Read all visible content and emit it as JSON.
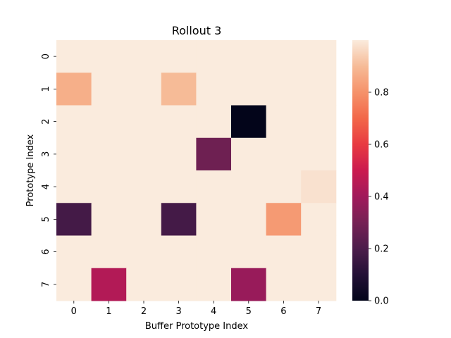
{
  "chart_data": {
    "type": "heatmap",
    "title": "Rollout 3",
    "xlabel": "Buffer Prototype Index",
    "ylabel": "Prototype Index",
    "x_categories": [
      "0",
      "1",
      "2",
      "3",
      "4",
      "5",
      "6",
      "7"
    ],
    "y_categories": [
      "0",
      "1",
      "2",
      "3",
      "4",
      "5",
      "6",
      "7"
    ],
    "values": [
      [
        1.0,
        1.0,
        1.0,
        1.0,
        1.0,
        1.0,
        1.0,
        1.0
      ],
      [
        0.87,
        1.0,
        1.0,
        0.9,
        1.0,
        1.0,
        1.0,
        1.0
      ],
      [
        1.0,
        1.0,
        1.0,
        1.0,
        1.0,
        0.0,
        1.0,
        1.0
      ],
      [
        1.0,
        1.0,
        1.0,
        1.0,
        0.28,
        1.0,
        1.0,
        1.0
      ],
      [
        1.0,
        1.0,
        1.0,
        1.0,
        1.0,
        1.0,
        1.0,
        0.98
      ],
      [
        0.18,
        1.0,
        1.0,
        0.18,
        1.0,
        1.0,
        0.82,
        1.0
      ],
      [
        1.0,
        1.0,
        1.0,
        1.0,
        1.0,
        1.0,
        1.0,
        1.0
      ],
      [
        1.0,
        0.44,
        1.0,
        1.0,
        1.0,
        0.38,
        1.0,
        1.0
      ]
    ],
    "colorbar": {
      "colormap": "rocket",
      "range": [
        0.0,
        1.0
      ],
      "ticks": [
        "0.0",
        "0.2",
        "0.4",
        "0.6",
        "0.8"
      ]
    }
  }
}
